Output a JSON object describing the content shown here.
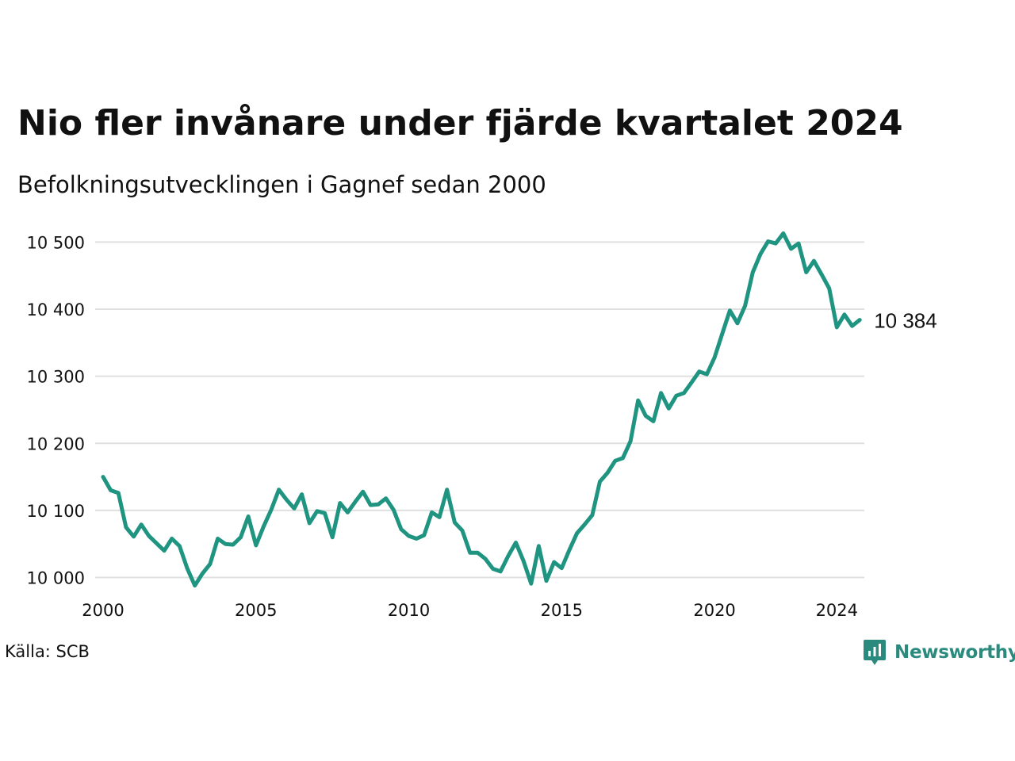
{
  "header": {
    "title": "Nio fler invånare under fjärde kvartalet 2024",
    "subtitle": "Befolkningsutvecklingen i Gagnef sedan 2000"
  },
  "footer": {
    "source": "Källa: SCB",
    "brand": "Newsworthy"
  },
  "colors": {
    "line": "#1f9480",
    "grid": "#e0e0e0",
    "brand": "#2b8a7e"
  },
  "brand_icon": "newsworthy-logo-icon",
  "chart_data": {
    "type": "line",
    "title": "Nio fler invånare under fjärde kvartalet 2024",
    "subtitle": "Befolkningsutvecklingen i Gagnef sedan 2000",
    "x_start": 2000.0,
    "x_step": 0.25,
    "values": [
      10150,
      10130,
      10126,
      10075,
      10061,
      10079,
      10062,
      10051,
      10040,
      10058,
      10047,
      10014,
      9988,
      10006,
      10020,
      10058,
      10050,
      10049,
      10060,
      10091,
      10048,
      10076,
      10101,
      10131,
      10116,
      10103,
      10124,
      10081,
      10099,
      10096,
      10060,
      10111,
      10097,
      10113,
      10128,
      10108,
      10109,
      10118,
      10101,
      10072,
      10062,
      10058,
      10063,
      10097,
      10090,
      10131,
      10082,
      10070,
      10037,
      10037,
      10028,
      10013,
      10009,
      10032,
      10052,
      10025,
      9991,
      10047,
      9995,
      10023,
      10014,
      10041,
      10066,
      10079,
      10093,
      10143,
      10156,
      10174,
      10178,
      10203,
      10264,
      10241,
      10233,
      10275,
      10252,
      10271,
      10275,
      10291,
      10307,
      10303,
      10328,
      10363,
      10398,
      10379,
      10405,
      10455,
      10482,
      10501,
      10498,
      10513,
      10490,
      10498,
      10455,
      10472,
      10452,
      10431,
      10373,
      10392,
      10375,
      10384
    ],
    "ylim": [
      9990,
      10530
    ],
    "xlim": [
      2000,
      2024.9
    ],
    "y_ticks": [
      10000,
      10100,
      10200,
      10300,
      10400,
      10500
    ],
    "y_tick_labels": [
      "10 000",
      "10 100",
      "10 200",
      "10 300",
      "10 400",
      "10 500"
    ],
    "x_ticks": [
      2000,
      2005,
      2010,
      2015,
      2020,
      2024
    ],
    "x_tick_labels": [
      "2000",
      "2005",
      "2010",
      "2015",
      "2020",
      "2024"
    ],
    "end_label": "10 384",
    "grid": "horizontal",
    "xlabel": "",
    "ylabel": ""
  }
}
